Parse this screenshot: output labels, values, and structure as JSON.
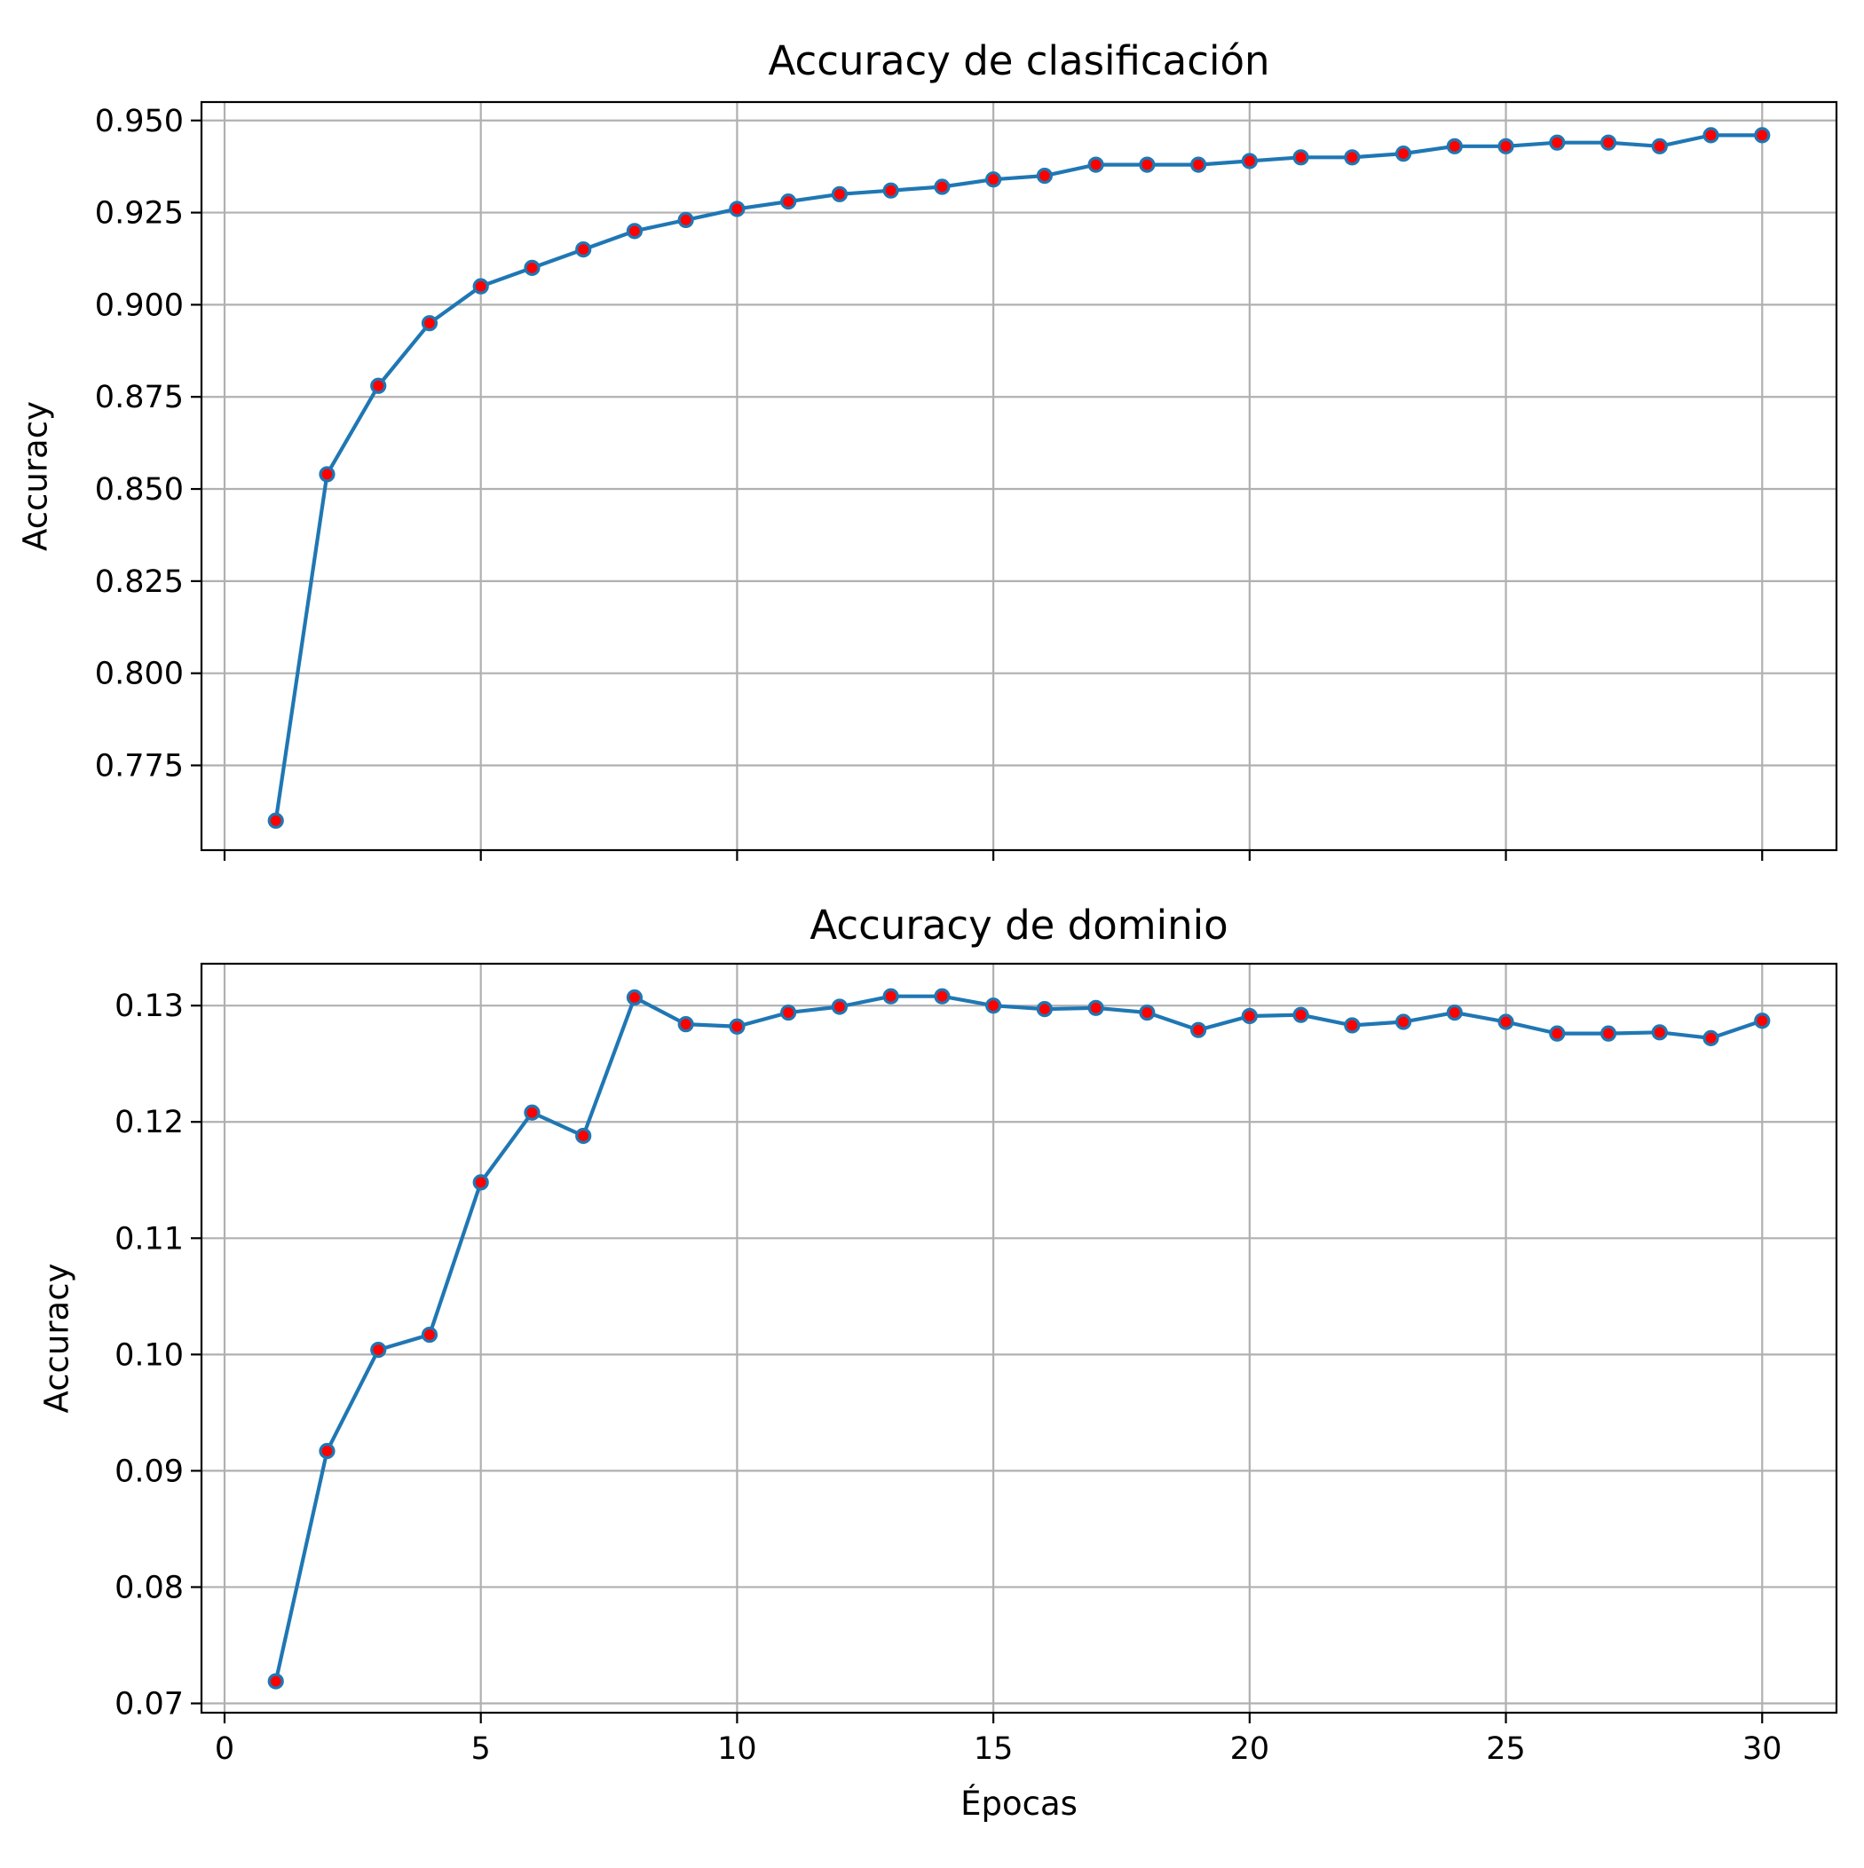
{
  "colors": {
    "line": "#1f77b4",
    "marker_face": "#ff0000",
    "marker_edge": "#1f77b4",
    "grid": "#b0b0b0",
    "frame": "#000000"
  },
  "chart_data": [
    {
      "type": "line",
      "title": "Accuracy de clasificación",
      "xlabel": "",
      "ylabel": "Accuracy",
      "xlim": [
        -0.45,
        31.45
      ],
      "ylim": [
        0.752,
        0.955
      ],
      "xticks": [
        0,
        5,
        10,
        15,
        20,
        25,
        30
      ],
      "xtick_labels_visible": false,
      "yticks": [
        0.775,
        0.8,
        0.825,
        0.85,
        0.875,
        0.9,
        0.925,
        0.95
      ],
      "ytick_labels": [
        "0.775",
        "0.800",
        "0.825",
        "0.850",
        "0.875",
        "0.900",
        "0.925",
        "0.950"
      ],
      "grid": true,
      "series": [
        {
          "x": [
            1,
            2,
            3,
            4,
            5,
            6,
            7,
            8,
            9,
            10,
            11,
            12,
            13,
            14,
            15,
            16,
            17,
            18,
            19,
            20,
            21,
            22,
            23,
            24,
            25,
            26,
            27,
            28,
            29,
            30
          ],
          "values": [
            0.76,
            0.854,
            0.878,
            0.895,
            0.905,
            0.91,
            0.915,
            0.92,
            0.923,
            0.926,
            0.928,
            0.93,
            0.931,
            0.932,
            0.934,
            0.935,
            0.938,
            0.938,
            0.938,
            0.939,
            0.94,
            0.94,
            0.941,
            0.943,
            0.943,
            0.944,
            0.944,
            0.943,
            0.946,
            0.946
          ]
        }
      ]
    },
    {
      "type": "line",
      "title": "Accuracy de dominio",
      "xlabel": "Épocas",
      "ylabel": "Accuracy",
      "xlim": [
        -0.45,
        31.45
      ],
      "ylim": [
        0.0692,
        0.1336
      ],
      "xticks": [
        0,
        5,
        10,
        15,
        20,
        25,
        30
      ],
      "xtick_labels": [
        "0",
        "5",
        "10",
        "15",
        "20",
        "25",
        "30"
      ],
      "yticks": [
        0.07,
        0.08,
        0.09,
        0.1,
        0.11,
        0.12,
        0.13
      ],
      "ytick_labels": [
        "0.07",
        "0.08",
        "0.09",
        "0.10",
        "0.11",
        "0.12",
        "0.13"
      ],
      "grid": true,
      "series": [
        {
          "x": [
            1,
            2,
            3,
            4,
            5,
            6,
            7,
            8,
            9,
            10,
            11,
            12,
            13,
            14,
            15,
            16,
            17,
            18,
            19,
            20,
            21,
            22,
            23,
            24,
            25,
            26,
            27,
            28,
            29,
            30
          ],
          "values": [
            0.0719,
            0.0917,
            0.1004,
            0.1017,
            0.1148,
            0.1208,
            0.1188,
            0.1307,
            0.1284,
            0.1282,
            0.1294,
            0.1299,
            0.1308,
            0.1308,
            0.13,
            0.1297,
            0.1298,
            0.1294,
            0.1279,
            0.1291,
            0.1292,
            0.1283,
            0.1286,
            0.1294,
            0.1286,
            0.1276,
            0.1276,
            0.1277,
            0.1272,
            0.1287
          ]
        }
      ]
    }
  ]
}
